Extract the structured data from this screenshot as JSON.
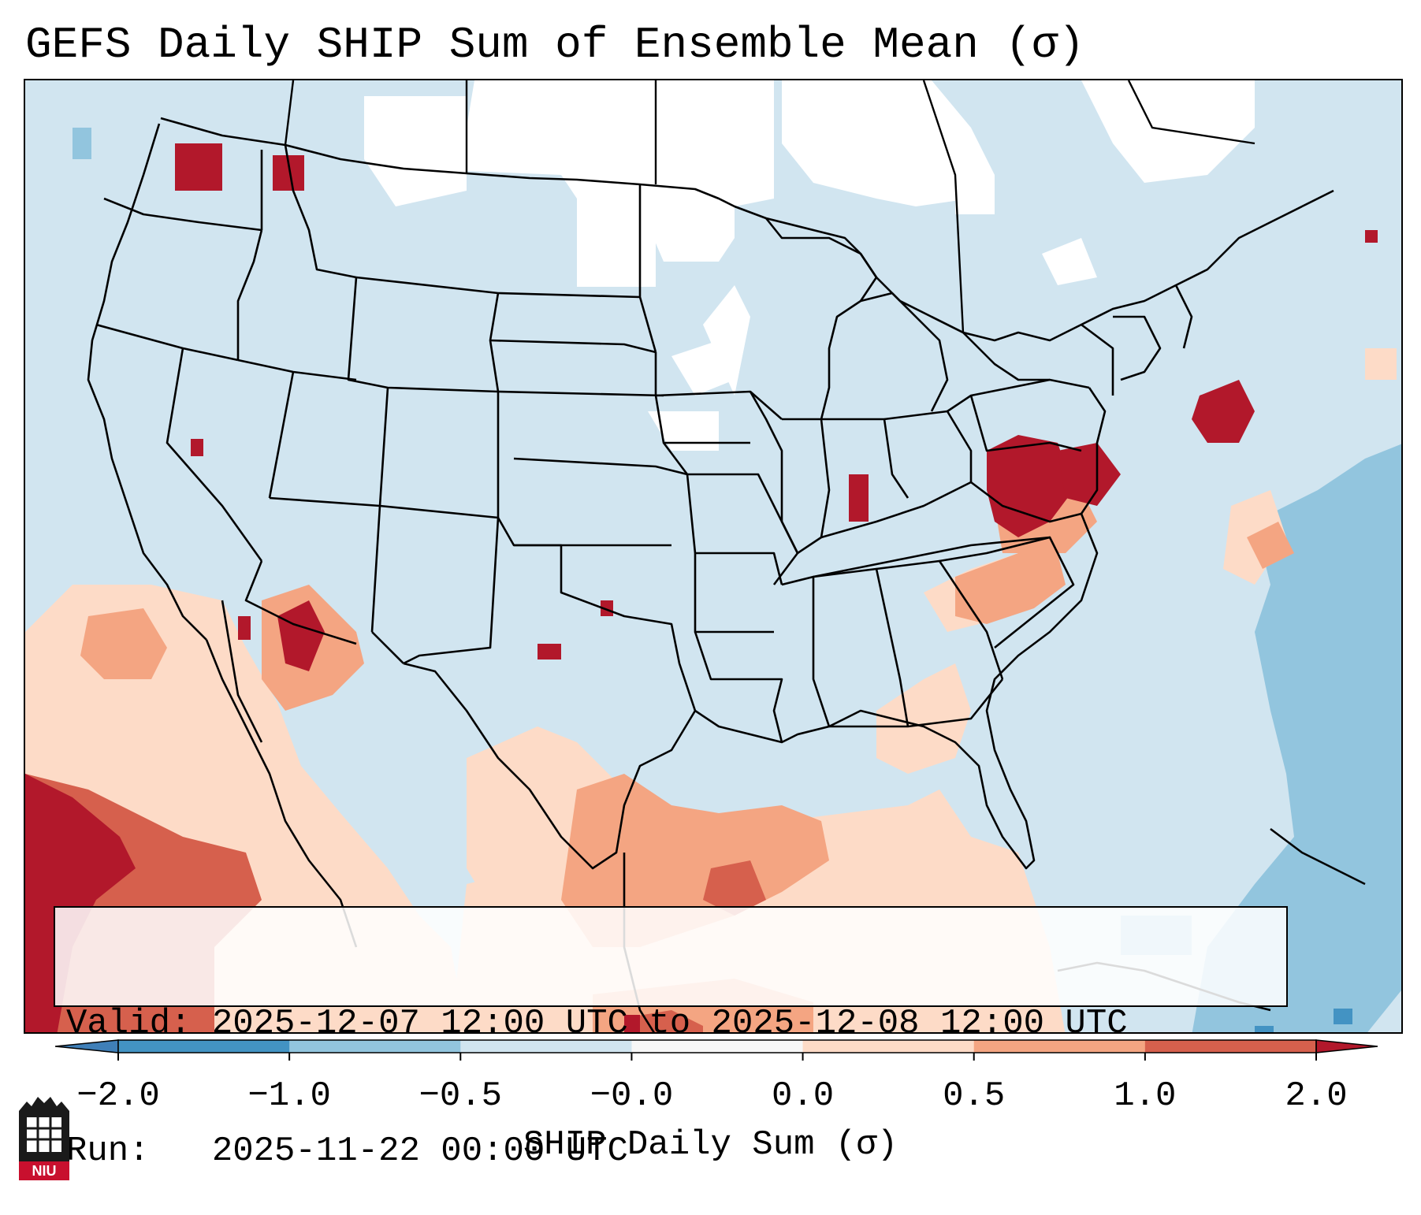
{
  "title": "GEFS Daily SHIP Sum of Ensemble Mean (σ)",
  "valid_box": {
    "valid_label": "Valid:",
    "valid_value": "2025-12-07 12:00 UTC to 2025-12-08 12:00 UTC",
    "run_label": "Run:",
    "run_value": "2025-11-22 00:00 UTC"
  },
  "colorbar": {
    "label": "SHIP Daily Sum (σ)",
    "ticks": [
      "−2.0",
      "−1.0",
      "−0.5",
      "−0.0",
      "0.0",
      "0.5",
      "1.0",
      "2.0"
    ],
    "colors": [
      "#3f7fb8",
      "#4393c3",
      "#92c5de",
      "#d1e5f0",
      "#f7f7f7",
      "#fddbc7",
      "#f4a582",
      "#d6604d",
      "#b2182b"
    ]
  },
  "map": {
    "background_color": "#d1e5f0",
    "no_data_color": "#ffffff",
    "projection": "Lambert Conformal (CONUS)",
    "state_boundaries": true,
    "coastlines": true
  },
  "logo": {
    "text": "NIU",
    "icon": "niu-logo-icon"
  }
}
